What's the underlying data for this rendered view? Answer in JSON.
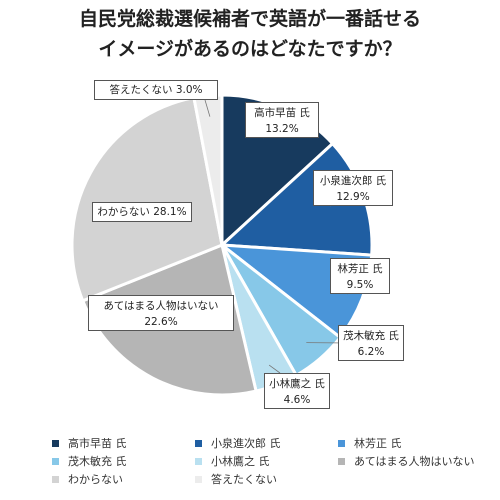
{
  "title_line1": "自民党総裁選候補者で英語が一番話せる",
  "title_line2": "イメージがあるのはどなたですか？",
  "chart_data": {
    "type": "pie",
    "title": "自民党総裁選候補者で英語が一番話せるイメージがあるのはどなたですか？",
    "legend_position": "bottom",
    "start_angle": "12 o'clock, clockwise",
    "slices": [
      {
        "name": "高市早苗 氏",
        "value": 13.2,
        "value_label": "13.2%",
        "color": "#173a5e"
      },
      {
        "name": "小泉進次郎 氏",
        "value": 12.9,
        "value_label": "12.9%",
        "color": "#1f5ea2"
      },
      {
        "name": "林芳正 氏",
        "value": 9.5,
        "value_label": "9.5%",
        "color": "#4a95d9"
      },
      {
        "name": "茂木敏充 氏",
        "value": 6.2,
        "value_label": "6.2%",
        "color": "#87c8e8"
      },
      {
        "name": "小林鷹之 氏",
        "value": 4.6,
        "value_label": "4.6%",
        "color": "#b9e0f0"
      },
      {
        "name": "あてはまる人物はいない",
        "value": 22.6,
        "value_label": "22.6%",
        "color": "#b5b5b5"
      },
      {
        "name": "わからない",
        "value": 28.1,
        "value_label": "28.1%",
        "color": "#d3d3d3"
      },
      {
        "name": "答えたくない",
        "value": 3.0,
        "value_label": "3.0%",
        "color": "#ececec"
      }
    ]
  }
}
